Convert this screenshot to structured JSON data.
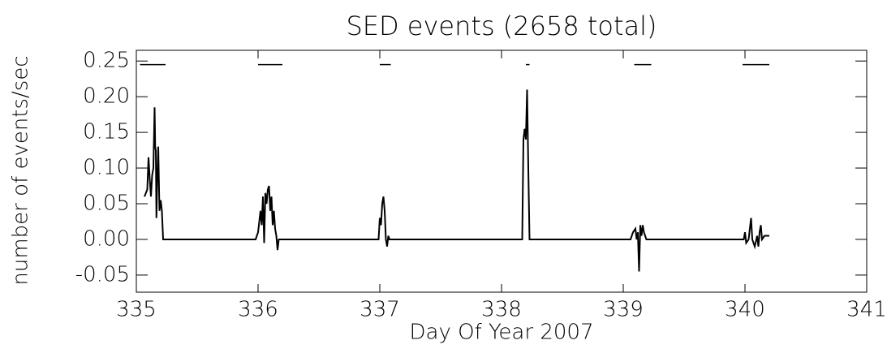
{
  "chart_data": {
    "type": "line",
    "title": "SED events (2658 total)",
    "x_label": "Day Of Year 2007",
    "y_label": "number of events/sec",
    "color": "#000000",
    "xlim": [
      335,
      341
    ],
    "xticks": [
      335,
      336,
      337,
      338,
      339,
      340,
      341
    ],
    "ylim": [
      -0.074,
      0.265
    ],
    "yticks": [
      -0.05,
      {
        "value": 0,
        "label": "0.00"
      },
      0.05,
      {
        "value": 0.1,
        "label": "0.10"
      },
      0.15,
      {
        "value": 0.2,
        "label": "0.20"
      },
      0.25
    ],
    "x": [
      335.067,
      335.09,
      335.1,
      335.11,
      335.12,
      335.13,
      335.14,
      335.15,
      335.155,
      335.16,
      335.165,
      335.17,
      335.18,
      335.19,
      335.2,
      335.21,
      335.22,
      335.98,
      336.0,
      336.02,
      336.03,
      336.04,
      336.05,
      336.06,
      336.07,
      336.08,
      336.09,
      336.1,
      336.11,
      336.12,
      336.13,
      336.14,
      336.15,
      336.16,
      336.17,
      336.99,
      337.0,
      337.01,
      337.02,
      337.03,
      337.04,
      337.05,
      337.06,
      337.07,
      337.08,
      338.17,
      338.18,
      338.19,
      338.2,
      338.21,
      338.22,
      338.23,
      339.06,
      339.08,
      339.1,
      339.11,
      339.12,
      339.13,
      339.14,
      339.15,
      339.16,
      339.17,
      339.19,
      339.99,
      340.0,
      340.01,
      340.03,
      340.05,
      340.06,
      340.08,
      340.1,
      340.11,
      340.12,
      340.13,
      340.14,
      340.16,
      340.2
    ],
    "values": [
      0.06,
      0.07,
      0.115,
      0.085,
      0.06,
      0.09,
      0.1,
      0.185,
      0.13,
      0.125,
      0.03,
      0.07,
      0.13,
      0.04,
      0.055,
      0.04,
      0,
      0,
      0.01,
      0.04,
      0.02,
      0.06,
      -0.005,
      0.065,
      0.05,
      0.07,
      0.075,
      0.04,
      0.06,
      0.02,
      0.04,
      0.015,
      0.005,
      -0.015,
      0,
      0,
      0.03,
      0.02,
      0.05,
      0.06,
      0.04,
      0,
      -0.01,
      0.005,
      0,
      0,
      0.14,
      0.155,
      0.14,
      0.21,
      0.1,
      0,
      0,
      0.01,
      0.015,
      0,
      0.01,
      -0.045,
      0.02,
      0.005,
      0.02,
      0.01,
      0,
      0,
      0.01,
      -0.005,
      0,
      0.03,
      0,
      -0.01,
      0.005,
      -0.01,
      0.01,
      0.02,
      0,
      0.005,
      0.005
    ],
    "segments": [
      {
        "x": [
          335.03,
          335.24
        ],
        "y": 0.245
      },
      {
        "x": [
          336.0,
          336.2
        ],
        "y": 0.245
      },
      {
        "x": [
          337.0,
          337.09
        ],
        "y": 0.245
      },
      {
        "x": [
          338.2,
          338.23
        ],
        "y": 0.245
      },
      {
        "x": [
          339.09,
          339.23
        ],
        "y": 0.245
      },
      {
        "x": [
          339.98,
          340.2
        ],
        "y": 0.245
      }
    ]
  }
}
